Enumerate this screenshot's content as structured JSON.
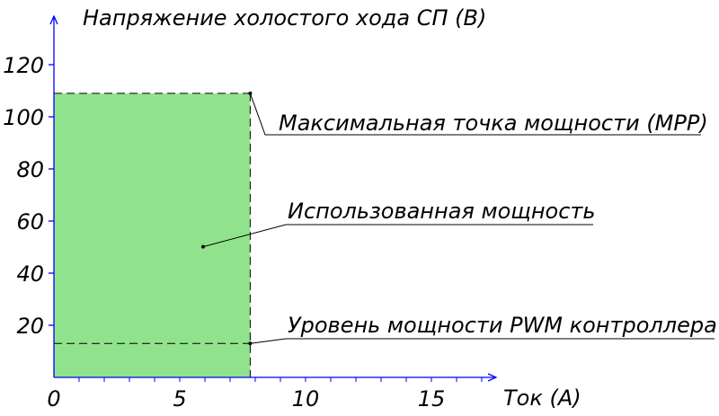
{
  "chart_data": {
    "type": "area",
    "ylabel": "Напряжение холостого хода СП (В)",
    "xlabel": "Ток (А)",
    "xlim": [
      0,
      18
    ],
    "ylim": [
      0,
      130
    ],
    "x_ticks": [
      0,
      5,
      10,
      15
    ],
    "y_ticks": [
      20,
      40,
      60,
      80,
      100,
      120
    ],
    "x_tick_labels": [
      "0",
      "5",
      "10",
      "15"
    ],
    "y_tick_labels": [
      "20",
      "40",
      "60",
      "80",
      "100",
      "120"
    ],
    "used_power_region": {
      "x": [
        0,
        7.8
      ],
      "y": [
        0,
        109
      ]
    },
    "mpp_point": {
      "x": 7.8,
      "y": 109
    },
    "pwm_level": {
      "x": [
        0,
        7.8
      ],
      "y": 13
    },
    "fill_color": "#90e38c",
    "axis_color": "#0000ff",
    "annotations": {
      "mpp": "Максимальная точка мощности (MPP)",
      "used_power": "Использованная мощность",
      "pwm": "Уровень мощности PWM контроллера"
    }
  }
}
